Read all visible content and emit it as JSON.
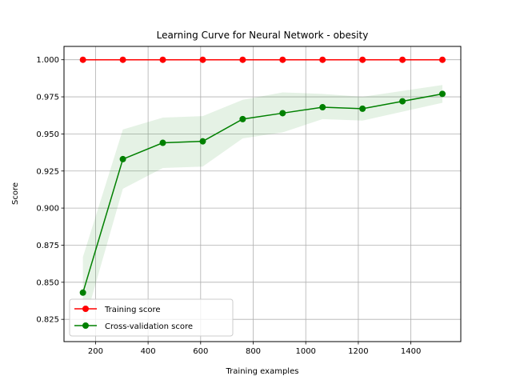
{
  "chart_data": {
    "type": "line",
    "title": "Learning Curve for Neural Network - obesity",
    "xlabel": "Training examples",
    "ylabel": "Score",
    "xlim": [
      80,
      1590
    ],
    "ylim": [
      0.81,
      1.009
    ],
    "x_ticks": [
      200,
      400,
      600,
      800,
      1000,
      1200,
      1400
    ],
    "y_ticks": [
      0.825,
      0.85,
      0.875,
      0.9,
      0.925,
      0.95,
      0.975,
      1.0
    ],
    "x_tick_labels": [
      "200",
      "400",
      "600",
      "800",
      "1000",
      "1200",
      "1400"
    ],
    "y_tick_labels": [
      "0.825",
      "0.850",
      "0.875",
      "0.900",
      "0.925",
      "0.950",
      "0.975",
      "1.000"
    ],
    "grid": true,
    "legend_placement": "lower-left",
    "x": [
      152,
      304,
      456,
      608,
      760,
      912,
      1064,
      1216,
      1368,
      1520
    ],
    "series": [
      {
        "name": "Training score",
        "color": "#ff0000",
        "values": [
          1.0,
          1.0,
          1.0,
          1.0,
          1.0,
          1.0,
          1.0,
          1.0,
          1.0,
          1.0
        ],
        "band_lower": [
          1.0,
          1.0,
          1.0,
          1.0,
          1.0,
          1.0,
          1.0,
          1.0,
          1.0,
          1.0
        ],
        "band_upper": [
          1.0,
          1.0,
          1.0,
          1.0,
          1.0,
          1.0,
          1.0,
          1.0,
          1.0,
          1.0
        ]
      },
      {
        "name": "Cross-validation score",
        "color": "#008000",
        "values": [
          0.843,
          0.933,
          0.944,
          0.945,
          0.96,
          0.964,
          0.968,
          0.967,
          0.972,
          0.977
        ],
        "band_lower": [
          0.819,
          0.913,
          0.927,
          0.928,
          0.947,
          0.951,
          0.96,
          0.959,
          0.965,
          0.971
        ],
        "band_upper": [
          0.867,
          0.953,
          0.961,
          0.962,
          0.973,
          0.978,
          0.977,
          0.975,
          0.979,
          0.983
        ]
      }
    ]
  }
}
